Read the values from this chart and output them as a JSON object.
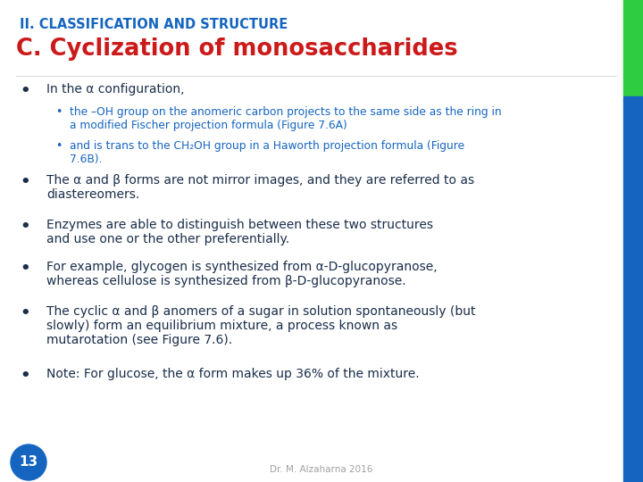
{
  "bg_color": "#ffffff",
  "right_bar_blue": "#1565c0",
  "right_bar_green": "#2ecc40",
  "title1": "II. CLASSIFICATION AND STRUCTURE",
  "title1_color": "#1565c0",
  "title2": "C. Cyclization of monosaccharides",
  "title2_color": "#cc1a1a",
  "bullet_color": "#1a2e4a",
  "sub_bullet_color": "#1565c0",
  "footer_color": "#a0a0a0",
  "footer_text": "Dr. M. Alzaharna 2016",
  "page_number": "13",
  "page_num_bg": "#1565c0",
  "page_num_color": "#ffffff",
  "bullet0_text": "In the α configuration,",
  "sub0": "the –OH group on the anomeric carbon projects to the same side as the ring in\na modified Fischer projection formula (Figure 7.6A)",
  "sub1": "and is trans to the CH₂OH group in a Haworth projection formula (Figure\n7.6B).",
  "bullet1_text": "The α and β forms are not mirror images, and they are referred to as\ndiastereomers.",
  "bullet2_text": "Enzymes are able to distinguish between these two structures\nand use one or the other preferentially.",
  "bullet3_text": "For example, glycogen is synthesized from α-D-glucopyranose,\nwhereas cellulose is synthesized from β-D-glucopyranose.",
  "bullet4_text": "The cyclic α and β anomers of a sugar in solution spontaneously (but\nslowly) form an equilibrium mixture, a process known as\nmutarotation (see Figure 7.6).",
  "bullet5_text": "Note: For glucose, the α form makes up 36% of the mixture."
}
